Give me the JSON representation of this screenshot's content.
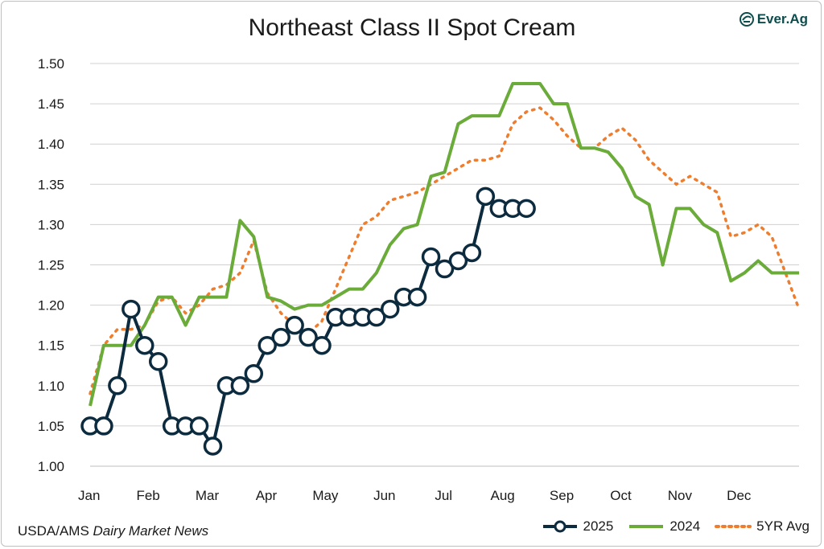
{
  "header": {
    "logo_text": "Ever.Ag"
  },
  "footer": {
    "source_prefix": "USDA/AMS ",
    "source_italic": "Dairy Market News"
  },
  "colors": {
    "s2025": "#0d2b3e",
    "s2024": "#6aab3a",
    "avg": "#ee7d2e",
    "grid": "#d0d0d0"
  },
  "chart_data": {
    "type": "line",
    "title": "Northeast Class II Spot Cream",
    "xlabel": "",
    "ylabel": "",
    "ylim": [
      1.0,
      1.5
    ],
    "yticks": [
      "1.00",
      "1.05",
      "1.10",
      "1.15",
      "1.20",
      "1.25",
      "1.30",
      "1.35",
      "1.40",
      "1.45",
      "1.50"
    ],
    "xlim": [
      1,
      53
    ],
    "month_labels": [
      "Jan",
      "Feb",
      "Mar",
      "Apr",
      "May",
      "Jun",
      "Jul",
      "Aug",
      "Sep",
      "Oct",
      "Nov",
      "Dec"
    ],
    "series": [
      {
        "name": "2025",
        "style": "line-markers",
        "x": [
          1,
          2,
          3,
          4,
          5,
          6,
          7,
          8,
          9,
          10,
          11,
          12,
          13,
          14,
          15,
          16,
          17,
          18,
          19,
          20,
          21,
          22,
          23,
          24,
          25,
          26,
          27,
          28,
          29,
          30,
          31,
          32,
          33
        ],
        "values": [
          1.05,
          1.05,
          1.1,
          1.195,
          1.15,
          1.13,
          1.05,
          1.05,
          1.05,
          1.025,
          1.1,
          1.1,
          1.115,
          1.15,
          1.16,
          1.175,
          1.16,
          1.15,
          1.185,
          1.185,
          1.185,
          1.185,
          1.195,
          1.21,
          1.21,
          1.26,
          1.245,
          1.255,
          1.265,
          1.335,
          1.32,
          1.32,
          1.32
        ]
      },
      {
        "name": "2024",
        "style": "solid",
        "x": [
          1,
          2,
          3,
          4,
          5,
          6,
          7,
          8,
          9,
          10,
          11,
          12,
          13,
          14,
          15,
          16,
          17,
          18,
          19,
          20,
          21,
          22,
          23,
          24,
          25,
          26,
          27,
          28,
          29,
          30,
          31,
          32,
          33,
          34,
          35,
          36,
          37,
          38,
          39,
          40,
          41,
          42,
          43,
          44,
          45,
          46,
          47,
          48,
          49,
          50,
          51,
          52,
          53
        ],
        "values": [
          1.075,
          1.15,
          1.15,
          1.15,
          1.175,
          1.21,
          1.21,
          1.175,
          1.21,
          1.21,
          1.21,
          1.305,
          1.285,
          1.21,
          1.205,
          1.195,
          1.2,
          1.2,
          1.21,
          1.22,
          1.22,
          1.24,
          1.275,
          1.295,
          1.3,
          1.36,
          1.365,
          1.425,
          1.435,
          1.435,
          1.435,
          1.475,
          1.475,
          1.475,
          1.45,
          1.45,
          1.395,
          1.395,
          1.39,
          1.37,
          1.335,
          1.325,
          1.25,
          1.32,
          1.32,
          1.3,
          1.29,
          1.23,
          1.24,
          1.255,
          1.24,
          1.24,
          1.24
        ]
      },
      {
        "name": "5YR Avg",
        "style": "dotted",
        "x": [
          1,
          2,
          3,
          4,
          5,
          6,
          7,
          8,
          9,
          10,
          11,
          12,
          13,
          14,
          15,
          16,
          17,
          18,
          19,
          20,
          21,
          22,
          23,
          24,
          25,
          26,
          27,
          28,
          29,
          30,
          31,
          32,
          33,
          34,
          35,
          36,
          37,
          38,
          39,
          40,
          41,
          42,
          43,
          44,
          45,
          46,
          47,
          48,
          49,
          50,
          51,
          52,
          53
        ],
        "values": [
          1.09,
          1.15,
          1.17,
          1.17,
          1.175,
          1.205,
          1.21,
          1.19,
          1.2,
          1.22,
          1.225,
          1.24,
          1.28,
          1.215,
          1.19,
          1.175,
          1.165,
          1.18,
          1.22,
          1.26,
          1.3,
          1.31,
          1.33,
          1.335,
          1.34,
          1.35,
          1.36,
          1.37,
          1.38,
          1.38,
          1.385,
          1.425,
          1.44,
          1.445,
          1.43,
          1.41,
          1.395,
          1.395,
          1.41,
          1.42,
          1.405,
          1.38,
          1.365,
          1.35,
          1.36,
          1.35,
          1.34,
          1.285,
          1.29,
          1.3,
          1.285,
          1.24,
          1.195
        ]
      }
    ]
  }
}
